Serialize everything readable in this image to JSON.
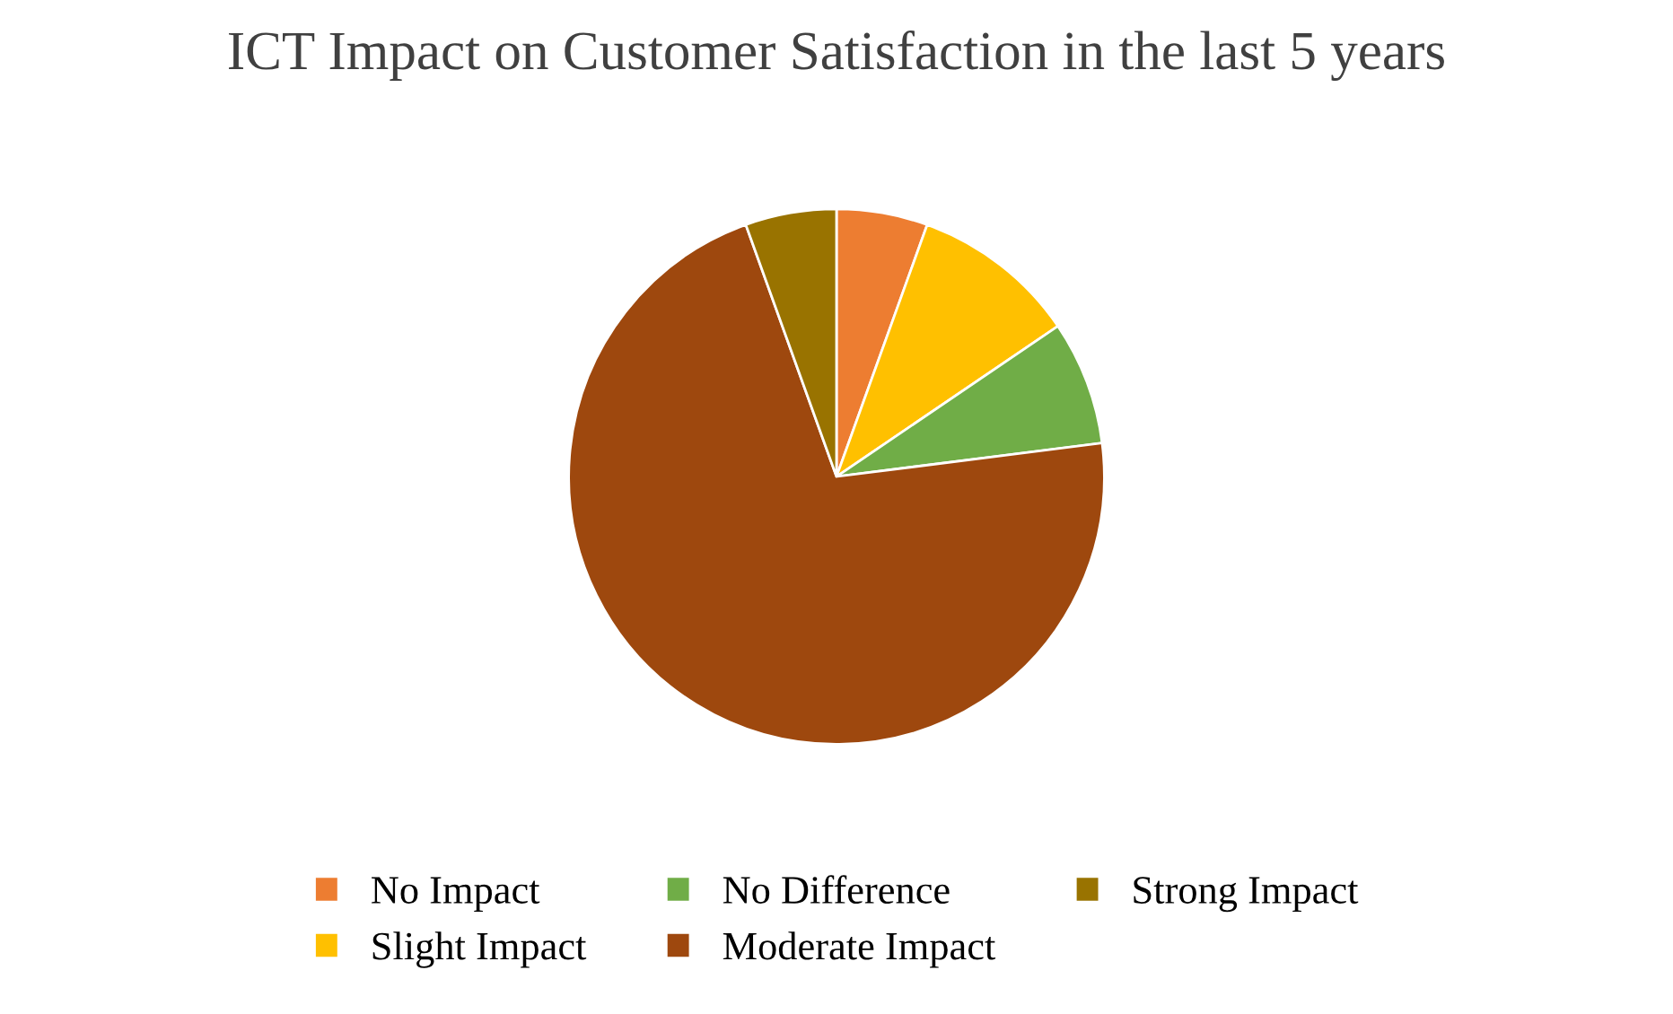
{
  "chart_data": {
    "type": "pie",
    "title": "ICT Impact on Customer Satisfaction in the last 5 years",
    "categories": [
      "No Impact",
      "Slight Impact",
      "No Difference",
      "Moderate Impact",
      "Strong Impact"
    ],
    "values": [
      5.5,
      10,
      7.5,
      71.5,
      5.5
    ],
    "colors": [
      "#ed7d31",
      "#ffc000",
      "#70ad47",
      "#9e480e",
      "#997300"
    ],
    "legend": "bottom"
  }
}
